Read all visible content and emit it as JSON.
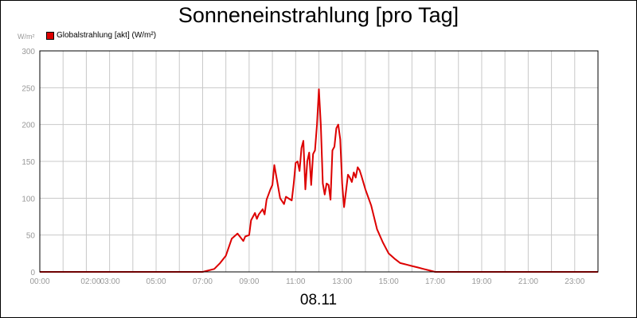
{
  "chart_data": {
    "type": "line",
    "title": "Sonneneinstrahlung [pro Tag]",
    "date_label": "08.11",
    "y_unit": "W/m²",
    "legend": {
      "placement": "top-left",
      "entries": [
        "Globalstrahlung [akt] (W/m²)"
      ]
    },
    "grid": true,
    "x_range_hours": [
      0,
      24
    ],
    "ylim": [
      0,
      300
    ],
    "x_ticks": [
      {
        "h": 0,
        "label": "00:00"
      },
      {
        "h": 2,
        "label": "02:00"
      },
      {
        "h": 3,
        "label": "03:00"
      },
      {
        "h": 5,
        "label": "05:00"
      },
      {
        "h": 7,
        "label": "07:00"
      },
      {
        "h": 9,
        "label": "09:00"
      },
      {
        "h": 11,
        "label": "11:00"
      },
      {
        "h": 13,
        "label": "13:00"
      },
      {
        "h": 15,
        "label": "15:00"
      },
      {
        "h": 17,
        "label": "17:00"
      },
      {
        "h": 19,
        "label": "19:00"
      },
      {
        "h": 21,
        "label": "21:00"
      },
      {
        "h": 23,
        "label": "23:00"
      }
    ],
    "y_ticks": [
      0,
      50,
      100,
      150,
      200,
      250,
      300
    ],
    "series": [
      {
        "name": "Globalstrahlung [akt] (W/m²)",
        "color": "#dd0000",
        "x": [
          "00:00",
          "07:00",
          "07:30",
          "07:45",
          "08:00",
          "08:15",
          "08:30",
          "08:45",
          "08:50",
          "09:00",
          "09:05",
          "09:15",
          "09:20",
          "09:25",
          "09:35",
          "09:40",
          "09:45",
          "09:55",
          "10:00",
          "10:05",
          "10:15",
          "10:20",
          "10:30",
          "10:35",
          "10:50",
          "10:55",
          "11:00",
          "11:05",
          "11:10",
          "11:15",
          "11:20",
          "11:25",
          "11:30",
          "11:35",
          "11:40",
          "11:45",
          "11:50",
          "11:55",
          "12:00",
          "12:05",
          "12:10",
          "12:15",
          "12:20",
          "12:25",
          "12:30",
          "12:35",
          "12:40",
          "12:45",
          "12:50",
          "12:55",
          "13:00",
          "13:05",
          "13:10",
          "13:15",
          "13:20",
          "13:25",
          "13:30",
          "13:35",
          "13:40",
          "13:45",
          "13:50",
          "14:00",
          "14:15",
          "14:30",
          "14:45",
          "15:00",
          "15:15",
          "15:30",
          "15:45",
          "16:00",
          "16:15",
          "16:30",
          "16:45",
          "17:00",
          "17:30",
          "24:00"
        ],
        "y": [
          0,
          0,
          4,
          12,
          22,
          45,
          52,
          42,
          48,
          50,
          70,
          80,
          72,
          78,
          85,
          78,
          98,
          112,
          118,
          145,
          115,
          100,
          92,
          102,
          97,
          120,
          148,
          150,
          137,
          168,
          178,
          112,
          150,
          162,
          118,
          160,
          165,
          200,
          248,
          200,
          120,
          105,
          120,
          118,
          98,
          165,
          170,
          195,
          200,
          180,
          120,
          88,
          110,
          132,
          128,
          122,
          135,
          128,
          142,
          138,
          130,
          112,
          90,
          58,
          40,
          25,
          18,
          12,
          10,
          8,
          6,
          4,
          2,
          0,
          0,
          0
        ]
      }
    ]
  }
}
